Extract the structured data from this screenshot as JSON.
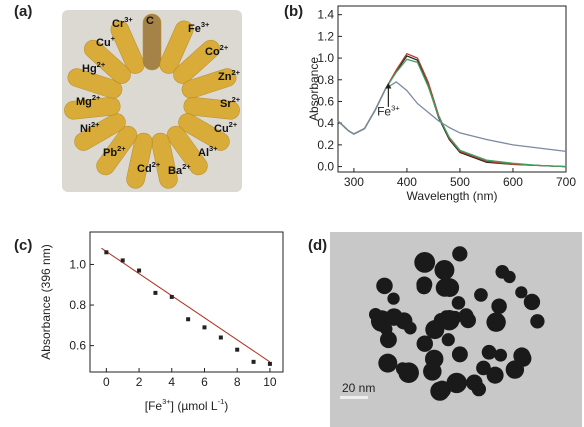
{
  "panels": [
    "(a)",
    "(b)",
    "(c)",
    "(d)"
  ],
  "ions": [
    {
      "name": "Cr",
      "charge": "3+"
    },
    {
      "name": "C",
      "charge": null
    },
    {
      "name": "Fe",
      "charge": "3+"
    },
    {
      "name": "Cu",
      "charge": "+"
    },
    {
      "name": "Co",
      "charge": "2+"
    },
    {
      "name": "Hg",
      "charge": "2+"
    },
    {
      "name": "Zn",
      "charge": "2+"
    },
    {
      "name": "Mg",
      "charge": "2+"
    },
    {
      "name": "Sr",
      "charge": "2+"
    },
    {
      "name": "Ni",
      "charge": "2+"
    },
    {
      "name": "Cu",
      "charge": "2+"
    },
    {
      "name": "Pb",
      "charge": "2+"
    },
    {
      "name": "Al",
      "charge": "3+"
    },
    {
      "name": "Cd",
      "charge": "2+"
    },
    {
      "name": "Ba",
      "charge": "2+"
    }
  ],
  "scale_bar": "20 nm",
  "chart_data": [
    {
      "type": "line",
      "y_label": "Absorbance",
      "x_label": "Wavelength (nm)",
      "annotation": [
        "Fe",
        "3+"
      ],
      "x": [
        270,
        290,
        300,
        320,
        340,
        360,
        380,
        400,
        420,
        440,
        460,
        480,
        500,
        550,
        600,
        650,
        700
      ],
      "series": [
        {
          "color": "#222222",
          "values": [
            0.42,
            0.33,
            0.3,
            0.35,
            0.52,
            0.72,
            0.88,
            1.02,
            0.98,
            0.75,
            0.45,
            0.25,
            0.13,
            0.04,
            0.02,
            0.01,
            0.0
          ]
        },
        {
          "color": "#b04030",
          "values": [
            0.42,
            0.33,
            0.3,
            0.35,
            0.52,
            0.72,
            0.89,
            1.04,
            1.0,
            0.78,
            0.47,
            0.26,
            0.14,
            0.05,
            0.02,
            0.01,
            0.0
          ]
        },
        {
          "color": "#40a060",
          "values": [
            0.42,
            0.33,
            0.3,
            0.35,
            0.52,
            0.72,
            0.87,
            0.99,
            0.96,
            0.74,
            0.46,
            0.27,
            0.15,
            0.06,
            0.03,
            0.01,
            0.0
          ]
        },
        {
          "color": "#7a8aa0",
          "values": [
            0.42,
            0.33,
            0.3,
            0.35,
            0.52,
            0.72,
            0.78,
            0.7,
            0.58,
            0.5,
            0.42,
            0.36,
            0.31,
            0.25,
            0.2,
            0.17,
            0.14
          ]
        }
      ],
      "xlim": [
        270,
        700
      ],
      "xticks": [
        300,
        400,
        500,
        600,
        700
      ],
      "ylim": [
        -0.05,
        1.48
      ],
      "yticks": [
        {
          "value": 0,
          "label": "0.0"
        },
        0.2,
        0.4,
        0.6,
        0.8,
        {
          "value": 1,
          "label": "1.0"
        },
        1.2,
        1.4
      ]
    },
    {
      "type": "scatter",
      "y_label": "Absorbance (396 nm)",
      "x_label": [
        "[Fe",
        "3+",
        "] (µmol L",
        "-1",
        ")"
      ],
      "x": [
        0,
        1,
        2,
        3,
        4,
        5,
        6,
        7,
        8,
        9,
        10
      ],
      "values": [
        1.06,
        1.02,
        0.97,
        0.86,
        0.84,
        0.73,
        0.69,
        0.64,
        0.58,
        0.52,
        0.51
      ],
      "color": "#222222",
      "fit": {
        "x": [
          -0.3,
          10
        ],
        "values": [
          1.08,
          0.52
        ],
        "color": "#b03020"
      },
      "xlim": [
        -1,
        10.8
      ],
      "xticks": [
        0,
        2,
        4,
        6,
        8,
        10
      ],
      "ylim": [
        0.47,
        1.16
      ],
      "yticks": [
        0.6,
        0.8,
        {
          "value": 1,
          "label": "1.0"
        }
      ]
    }
  ]
}
